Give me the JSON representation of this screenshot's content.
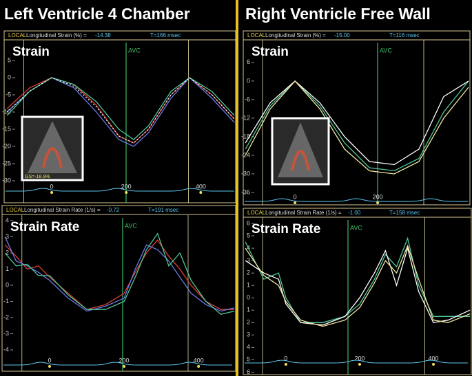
{
  "titles": {
    "left": "Left Ventricle 4 Chamber",
    "right": "Right Ventricle Free Wall"
  },
  "chart_data": [
    {
      "type": "line",
      "title": "Strain",
      "header_label": "LOCAL:",
      "header_text": "Longitudinal Strain (%) =",
      "header_value": "-14.38",
      "header_time": "T=166 msec",
      "annotation": "AVC",
      "inset_label": "GS=-18.9%",
      "x": [
        -120,
        -60,
        0,
        60,
        120,
        180,
        220,
        260,
        320,
        370,
        430,
        490
      ],
      "series": [
        {
          "color": "#e0403a",
          "values": [
            -9,
            -3,
            0,
            -2,
            -8,
            -17,
            -19,
            -15,
            -5,
            0,
            -5,
            -12
          ]
        },
        {
          "color": "#6a7be8",
          "values": [
            -10,
            -4,
            0,
            -3,
            -10,
            -18,
            -20,
            -16,
            -6,
            0,
            -6,
            -13
          ]
        },
        {
          "color": "#4fc79a",
          "values": [
            -11,
            -4,
            0,
            -2,
            -7,
            -15,
            -18,
            -14,
            -4,
            0,
            -4,
            -11
          ]
        },
        {
          "color": "#ffffff",
          "dashed": true,
          "values": [
            -10,
            -4,
            0,
            -2.5,
            -8.5,
            -17,
            -19,
            -15,
            -5,
            0,
            -5,
            -12
          ]
        }
      ],
      "xlim": [
        -124,
        490
      ],
      "ylim": [
        -36.4,
        11
      ],
      "xticks": [
        0,
        200,
        400
      ],
      "yticks": [
        5,
        0,
        -5,
        -10,
        -15,
        -20,
        -25,
        -30
      ]
    },
    {
      "type": "line",
      "title": "Strain Rate",
      "header_label": "LOCAL:",
      "header_text": "Longitudinal Strain Rate (1/s) =",
      "header_value": "-0.72",
      "header_time": "T=191 msec",
      "annotation": "AVC",
      "x": [
        -120,
        -90,
        -60,
        -30,
        0,
        50,
        100,
        150,
        200,
        230,
        260,
        290,
        320,
        350,
        380,
        420,
        460,
        496
      ],
      "series": [
        {
          "color": "#e0403a",
          "values": [
            2.5,
            1.8,
            1,
            1.2,
            0.5,
            -0.5,
            -1.5,
            -1.2,
            -0.5,
            0.8,
            2,
            2.8,
            1.8,
            1,
            0,
            -1,
            -1.5,
            -1.5
          ]
        },
        {
          "color": "#6a7be8",
          "values": [
            3,
            1.5,
            1.2,
            0.8,
            0.3,
            -0.8,
            -1.6,
            -1.3,
            -0.8,
            1,
            2.5,
            2.2,
            1.5,
            0.5,
            -0.5,
            -1.2,
            -1.6,
            -1.4
          ]
        },
        {
          "color": "#4fc79a",
          "values": [
            2,
            1.2,
            1.3,
            0.6,
            0.6,
            -0.6,
            -1.5,
            -1.5,
            -1,
            0.5,
            2.2,
            3.2,
            1.2,
            2,
            0.3,
            -1,
            -1.8,
            -1.6
          ]
        }
      ],
      "xlim": [
        -124,
        496
      ],
      "ylim": [
        -5.32,
        4.34
      ],
      "xticks": [
        0,
        200,
        400
      ],
      "yticks": [
        4,
        3,
        2,
        1,
        0,
        -1,
        -2,
        -3,
        -4
      ]
    },
    {
      "type": "line",
      "title": "Strain",
      "header_label": "LOCAL:",
      "header_text": "Longitudinal Strain (%) =",
      "header_value": "-15.00",
      "header_time": "T=116 msec",
      "annotation": "AVC",
      "x": [
        -120,
        -60,
        0,
        60,
        120,
        180,
        240,
        300,
        360,
        420
      ],
      "series": [
        {
          "color": "#4fc79a",
          "values": [
            -22,
            -8,
            0,
            -8,
            -20,
            -28,
            -29,
            -25,
            -10,
            0
          ]
        },
        {
          "color": "#ffffff",
          "values": [
            -20,
            -7,
            0,
            -7,
            -18,
            -26,
            -27,
            -22,
            -5,
            0
          ]
        },
        {
          "color": "#f2e8a0",
          "values": [
            -24,
            -9,
            0,
            -9,
            -22,
            -29,
            -30,
            -26,
            -12,
            -2
          ]
        }
      ],
      "xlim": [
        -122,
        420
      ],
      "ylim": [
        -40,
        13.3
      ],
      "xticks": [
        0,
        200
      ],
      "yticks": [
        6,
        0,
        -6,
        -12,
        -18,
        -24,
        -30,
        -36
      ]
    },
    {
      "type": "line",
      "title": "Strain Rate",
      "header_label": "LOCAL:",
      "header_text": "Longitudinal Strain Rate (1/s) =",
      "header_value": "-1.00",
      "header_time": "T=158 msec",
      "annotation": "AVC",
      "x": [
        -110,
        -60,
        -20,
        0,
        40,
        100,
        160,
        200,
        240,
        270,
        300,
        330,
        360,
        400,
        440,
        499
      ],
      "series": [
        {
          "color": "#4fc79a",
          "values": [
            4.5,
            1.5,
            2,
            0,
            -2,
            -2,
            -1.5,
            -0.5,
            1.5,
            3.5,
            2.5,
            4.8,
            1,
            -1.5,
            -1.5,
            -1.5
          ]
        },
        {
          "color": "#ffffff",
          "values": [
            3,
            2,
            1.5,
            -0.5,
            -2,
            -2.2,
            -1.5,
            0,
            2,
            3.8,
            1,
            4,
            0.5,
            -2,
            -1.8,
            -1
          ]
        },
        {
          "color": "#f2e8a0",
          "values": [
            4,
            1.8,
            1,
            -0.3,
            -1.8,
            -2.3,
            -1.8,
            -0.8,
            1.2,
            3,
            2,
            4.2,
            1.5,
            -1.8,
            -2,
            -1.3
          ]
        }
      ],
      "xlim": [
        -112,
        499
      ],
      "ylim": [
        -6.2,
        6.5
      ],
      "xticks": [
        0,
        200,
        400
      ],
      "yticks": [
        6,
        5,
        4,
        3,
        2,
        1,
        0,
        {
          "value": -1,
          "label": "1"
        },
        {
          "value": -2,
          "label": "2"
        },
        {
          "value": -3,
          "label": "3"
        },
        {
          "value": -4,
          "label": "4"
        },
        {
          "value": -5,
          "label": "5"
        },
        {
          "value": -6,
          "label": "6"
        }
      ]
    }
  ]
}
